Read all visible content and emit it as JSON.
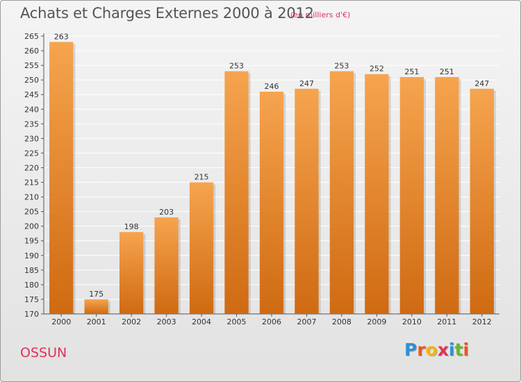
{
  "header": {
    "title": "Achats et Charges Externes 2000 à 2012",
    "subtitle": "(en milliers d'€)"
  },
  "footer": {
    "commune": "OSSUN",
    "logo_text": "Proxiti"
  },
  "colors": {
    "bar_top": "#f6a44e",
    "bar_bottom": "#cf6a12",
    "title": "#555555",
    "accent": "#e0325a",
    "grid": "#ffffff"
  },
  "chart_data": {
    "type": "bar",
    "title": "Achats et Charges Externes 2000 à 2012",
    "subtitle": "(en milliers d'€)",
    "categories": [
      "2000",
      "2001",
      "2002",
      "2003",
      "2004",
      "2005",
      "2006",
      "2007",
      "2008",
      "2009",
      "2010",
      "2011",
      "2012"
    ],
    "values": [
      263,
      175,
      198,
      203,
      215,
      253,
      246,
      247,
      253,
      252,
      251,
      251,
      247
    ],
    "data_labels": [
      "263",
      "175",
      "198",
      "203",
      "215",
      "253",
      "246",
      "247",
      "253",
      "252",
      "251",
      "251",
      "247"
    ],
    "ylim": [
      170,
      265
    ],
    "yticks": [
      170,
      175,
      180,
      185,
      190,
      195,
      200,
      205,
      210,
      215,
      220,
      225,
      230,
      235,
      240,
      245,
      250,
      255,
      260,
      265
    ],
    "ytick_labels": [
      "170",
      "175",
      "180",
      "185",
      "190",
      "195",
      "200",
      "205",
      "210",
      "215",
      "220",
      "225",
      "230",
      "235",
      "240",
      "245",
      "250",
      "255",
      "260",
      "265"
    ],
    "grid": true,
    "legend": "none"
  }
}
